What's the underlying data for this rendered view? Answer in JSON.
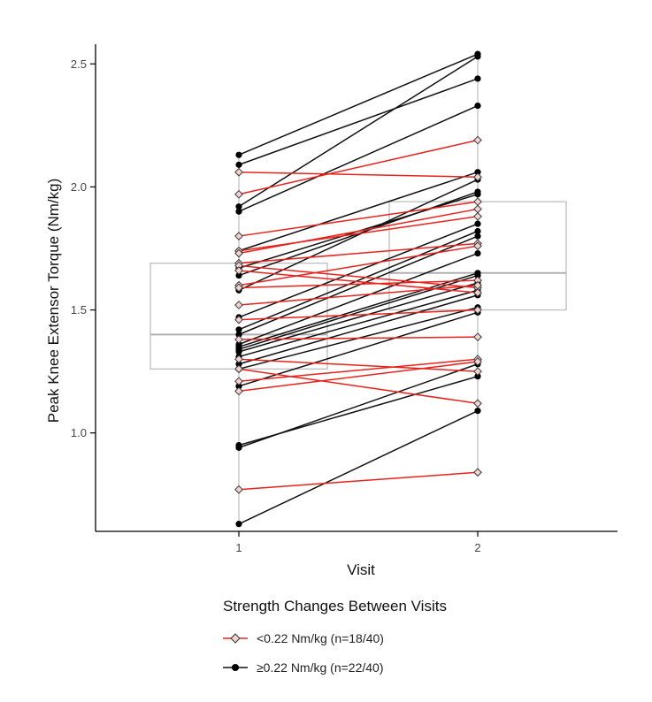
{
  "chart_data": {
    "type": "line",
    "xlabel": "Visit",
    "ylabel": "Peak Knee Extensor Torque (Nm/kg)",
    "x_categories": [
      "1",
      "2"
    ],
    "y_ticks": [
      1.0,
      1.5,
      2.0,
      2.5
    ],
    "y_tick_labels": [
      "1.0",
      "1.5",
      "2.0",
      "2.5"
    ],
    "ylim": [
      0.6,
      2.58
    ],
    "grid": false,
    "boxplots": [
      {
        "x": "1",
        "q1": 1.26,
        "median": 1.4,
        "q3": 1.69,
        "whisker_low": 0.63,
        "whisker_high": 2.13
      },
      {
        "x": "2",
        "q1": 1.5,
        "median": 1.65,
        "q3": 1.94,
        "whisker_low": 0.84,
        "whisker_high": 2.54
      }
    ],
    "legend": {
      "title": "Strength Changes Between Visits",
      "placement": "bottom",
      "entries": [
        "<0.22 Nm/kg (n=18/40)",
        "≥0.22 Nm/kg (n=22/40)"
      ]
    },
    "series": [
      {
        "legend_index": 0,
        "color": "#e8231d",
        "marker": "diamond-open",
        "pairs": [
          [
            2.06,
            2.04
          ],
          [
            1.97,
            2.19
          ],
          [
            1.8,
            1.94
          ],
          [
            1.74,
            1.88
          ],
          [
            1.73,
            1.91
          ],
          [
            1.69,
            1.77
          ],
          [
            1.68,
            1.59
          ],
          [
            1.66,
            1.57
          ],
          [
            1.6,
            1.76
          ],
          [
            1.59,
            1.62
          ],
          [
            1.52,
            1.6
          ],
          [
            1.46,
            1.5
          ],
          [
            1.38,
            1.39
          ],
          [
            1.3,
            1.25
          ],
          [
            1.26,
            1.12
          ],
          [
            1.21,
            1.3
          ],
          [
            1.17,
            1.29
          ],
          [
            0.77,
            0.84
          ]
        ]
      },
      {
        "legend_index": 1,
        "color": "#111111",
        "marker": "circle-filled",
        "pairs": [
          [
            2.13,
            2.54
          ],
          [
            2.09,
            2.44
          ],
          [
            1.92,
            2.53
          ],
          [
            1.9,
            2.33
          ],
          [
            1.74,
            2.06
          ],
          [
            1.67,
            1.97
          ],
          [
            1.64,
            1.98
          ],
          [
            1.58,
            2.03
          ],
          [
            1.47,
            1.85
          ],
          [
            1.42,
            1.82
          ],
          [
            1.4,
            1.8
          ],
          [
            1.36,
            1.73
          ],
          [
            1.35,
            1.65
          ],
          [
            1.34,
            1.64
          ],
          [
            1.33,
            1.61
          ],
          [
            1.31,
            1.58
          ],
          [
            1.28,
            1.56
          ],
          [
            1.26,
            1.51
          ],
          [
            1.19,
            1.49
          ],
          [
            0.95,
            1.23
          ],
          [
            0.94,
            1.28
          ],
          [
            0.63,
            1.09
          ]
        ]
      }
    ]
  }
}
